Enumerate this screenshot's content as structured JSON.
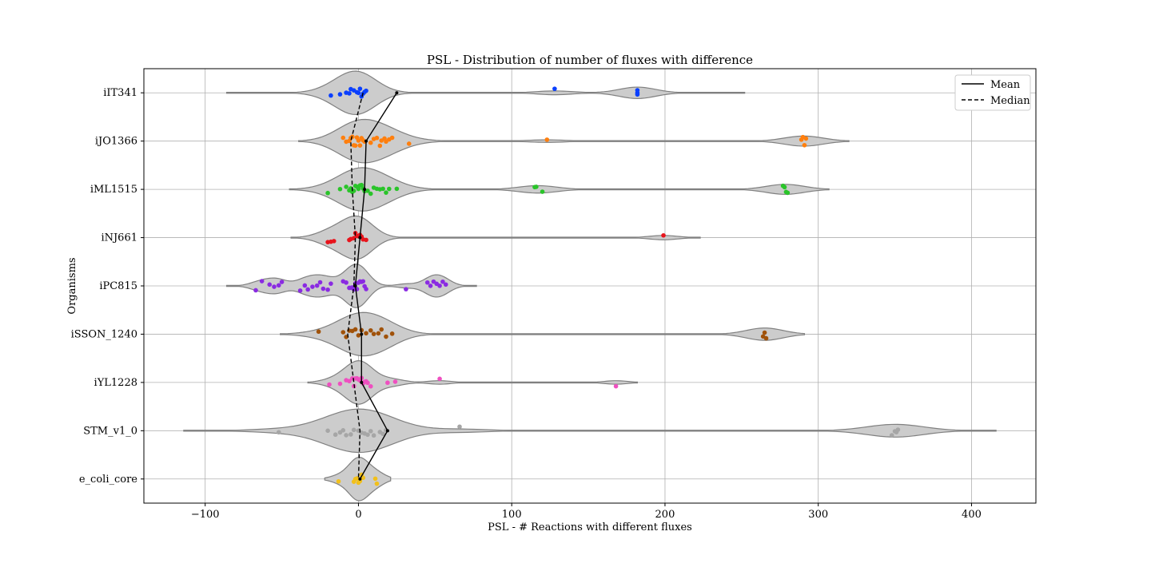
{
  "chart_data": {
    "type": "violin",
    "title": "PSL - Distribution of number of fluxes with difference",
    "xlabel": "PSL - # Reactions with different fluxes",
    "ylabel": "Organisms",
    "xlim": [
      -140,
      442
    ],
    "xticks": [
      -100,
      0,
      100,
      200,
      300,
      400
    ],
    "grid": true,
    "legend": {
      "placement": "top-right",
      "entries": [
        {
          "label": "Mean",
          "style": "solid"
        },
        {
          "label": "Median",
          "style": "dashed"
        }
      ]
    },
    "categories": [
      "iIT341",
      "iJO1366",
      "iML1515",
      "iNJ661",
      "iPC815",
      "iSSON_1240",
      "iYL1228",
      "STM_v1_0",
      "e_coli_core"
    ],
    "colors": [
      "#0a3fff",
      "#ff7f0e",
      "#2ac42a",
      "#e8141c",
      "#8a2be2",
      "#a0520a",
      "#ef4fc0",
      "#a6a6a6",
      "#f2c01a"
    ],
    "violin_color": "#cccccc",
    "series": [
      {
        "name": "iIT341",
        "mean": 25,
        "median": 3,
        "range": [
          -86,
          252
        ],
        "points": [
          -8,
          -6,
          -5,
          -3,
          -1,
          0,
          1,
          2,
          3,
          4,
          5,
          -18,
          -12,
          128,
          182,
          182,
          182
        ]
      },
      {
        "name": "iJO1366",
        "mean": 5,
        "median": -5,
        "range": [
          -39,
          320
        ],
        "points": [
          -10,
          -8,
          -6,
          -5,
          -4,
          -3,
          -2,
          -1,
          0,
          1,
          2,
          3,
          4,
          8,
          10,
          12,
          14,
          15,
          17,
          18,
          20,
          22,
          33,
          123,
          289,
          290,
          291,
          292
        ]
      },
      {
        "name": "iML1515",
        "mean": 4,
        "median": -4,
        "range": [
          -45,
          307
        ],
        "points": [
          -20,
          -12,
          -8,
          -6,
          -5,
          -4,
          -3,
          -2,
          -1,
          0,
          1,
          2,
          3,
          4,
          6,
          8,
          10,
          12,
          14,
          16,
          18,
          20,
          25,
          115,
          116,
          120,
          277,
          278,
          279,
          280
        ]
      },
      {
        "name": "iNJ661",
        "mean": 1,
        "median": -2,
        "range": [
          -44,
          223
        ],
        "points": [
          -20,
          -18,
          -16,
          -6,
          -5,
          -3,
          -2,
          -1,
          0,
          1,
          2,
          3,
          5,
          199
        ]
      },
      {
        "name": "iPC815",
        "mean": -2,
        "median": -3,
        "range": [
          -86,
          77
        ],
        "points": [
          -67,
          -63,
          -58,
          -55,
          -52,
          -50,
          -38,
          -35,
          -33,
          -30,
          -27,
          -25,
          -23,
          -20,
          -18,
          -10,
          -8,
          -6,
          -5,
          -4,
          -3,
          -2,
          -1,
          0,
          1,
          2,
          3,
          4,
          5,
          31,
          45,
          47,
          49,
          51,
          53,
          55,
          57
        ]
      },
      {
        "name": "iSSON_1240",
        "mean": 2,
        "median": -7,
        "range": [
          -51,
          291
        ],
        "points": [
          -26,
          -10,
          -8,
          -6,
          -4,
          -2,
          0,
          2,
          5,
          8,
          10,
          13,
          15,
          18,
          22,
          264,
          265,
          266
        ]
      },
      {
        "name": "iYL1228",
        "mean": 2,
        "median": -3,
        "range": [
          -33,
          182
        ],
        "points": [
          -19,
          -12,
          -8,
          -6,
          -4,
          -3,
          -2,
          -1,
          0,
          1,
          2,
          3,
          4,
          5,
          6,
          8,
          19,
          24,
          53,
          168
        ]
      },
      {
        "name": "STM_v1_0",
        "mean": 19,
        "median": 1,
        "range": [
          -114,
          416
        ],
        "points": [
          -52,
          -20,
          -15,
          -12,
          -10,
          -8,
          -5,
          -3,
          0,
          2,
          4,
          6,
          8,
          10,
          14,
          16,
          18,
          66,
          348,
          350,
          351,
          352
        ]
      },
      {
        "name": "e_coli_core",
        "mean": 1,
        "median": 0,
        "range": [
          -22,
          21
        ],
        "points": [
          -13,
          -3,
          -2,
          -1,
          0,
          1,
          2,
          3,
          11,
          12
        ]
      }
    ]
  }
}
